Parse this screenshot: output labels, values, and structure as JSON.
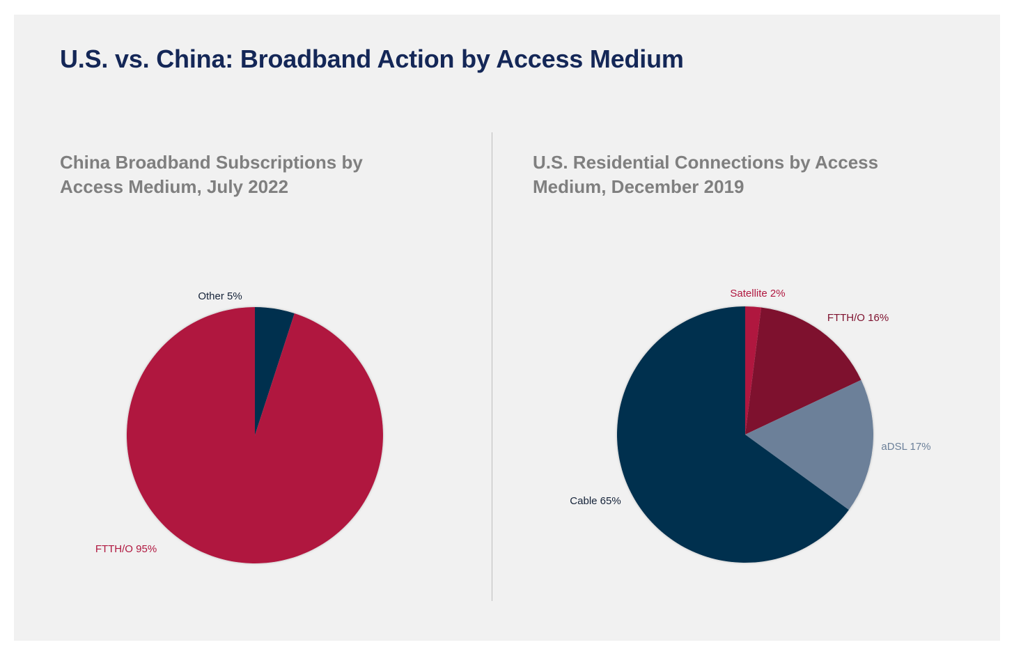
{
  "title": "U.S. vs. China: Broadband Action by Access Medium",
  "chart_data": [
    {
      "type": "pie",
      "title": "China Broadband Subscriptions by Access Medium, July 2022",
      "slices": [
        {
          "name": "Other",
          "value": 5,
          "label": "Other 5%",
          "color": "#00304e",
          "label_color": "#142238"
        },
        {
          "name": "FTTH/O",
          "value": 95,
          "label": "FTTH/O 95%",
          "color": "#b0173f",
          "label_color": "#b0173f"
        }
      ]
    },
    {
      "type": "pie",
      "title": "U.S. Residential Connections by Access Medium, December 2019",
      "slices": [
        {
          "name": "Satellite",
          "value": 2,
          "label": "Satellite 2%",
          "color": "#b0173f",
          "label_color": "#b0173f"
        },
        {
          "name": "FTTH/O",
          "value": 16,
          "label": "FTTH/O 16%",
          "color": "#7e112e",
          "label_color": "#7e112e"
        },
        {
          "name": "aDSL",
          "value": 17,
          "label": "aDSL 17%",
          "color": "#6c8099",
          "label_color": "#6c8099"
        },
        {
          "name": "Cable",
          "value": 65,
          "label": "Cable 65%",
          "color": "#00304e",
          "label_color": "#142238"
        }
      ]
    }
  ]
}
